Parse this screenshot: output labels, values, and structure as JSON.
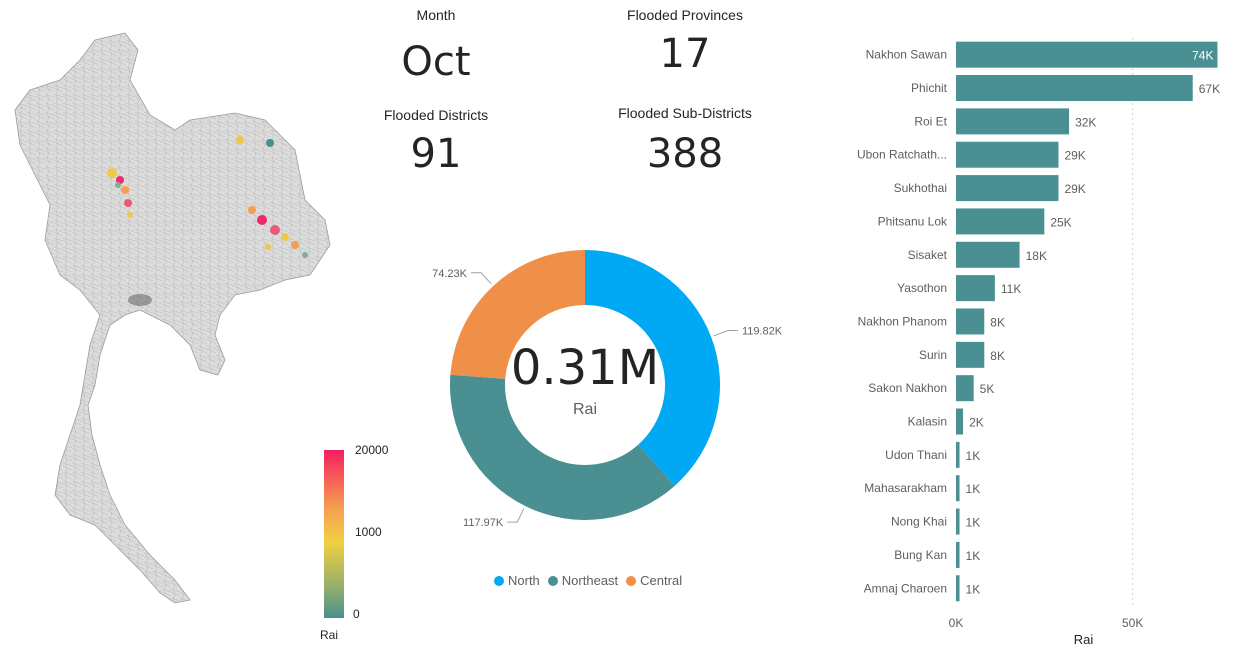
{
  "kpis": {
    "month": {
      "label": "Month",
      "value": "Oct"
    },
    "flooded_provinces": {
      "label": "Flooded Provinces",
      "value": "17"
    },
    "flooded_districts": {
      "label": "Flooded Districts",
      "value": "91"
    },
    "flooded_subdistricts": {
      "label": "Flooded Sub-Districts",
      "value": "388"
    }
  },
  "map": {
    "legend": {
      "max_label": "20000",
      "mid_label": "1000",
      "min_label": "0",
      "title": "Rai"
    },
    "colors": {
      "high": "#f0286e",
      "mid": "#f0c846",
      "low": "#4a8f8f",
      "base": "#d8d8d8"
    }
  },
  "chart_data": [
    {
      "type": "pie",
      "donut": true,
      "center_value": "0.31M",
      "center_label": "Rai",
      "slices": [
        {
          "name": "North",
          "value": 119.82,
          "label": "119.82K",
          "color": "#01a8f4"
        },
        {
          "name": "Northeast",
          "value": 117.97,
          "label": "117.97K",
          "color": "#4a9092"
        },
        {
          "name": "Central",
          "value": 74.23,
          "label": "74.23K",
          "color": "#f09048"
        }
      ],
      "legend": [
        "North",
        "Northeast",
        "Central"
      ],
      "legend_position": "bottom"
    },
    {
      "type": "bar",
      "orientation": "horizontal",
      "categories": [
        "Nakhon Sawan",
        "Phichit",
        "Roi Et",
        "Ubon Ratchath...",
        "Sukhothai",
        "Phitsanu Lok",
        "Sisaket",
        "Yasothon",
        "Nakhon Phanom",
        "Surin",
        "Sakon Nakhon",
        "Kalasin",
        "Udon Thani",
        "Mahasarakham",
        "Nong Khai",
        "Bung Kan",
        "Amnaj Charoen"
      ],
      "values": [
        74,
        67,
        32,
        29,
        29,
        25,
        18,
        11,
        8,
        8,
        5,
        2,
        1,
        1,
        1,
        1,
        1
      ],
      "value_labels": [
        "74K",
        "67K",
        "32K",
        "29K",
        "29K",
        "25K",
        "18K",
        "11K",
        "8K",
        "8K",
        "5K",
        "2K",
        "1K",
        "1K",
        "1K",
        "1K",
        "1K"
      ],
      "xticks": [
        "0K",
        "50K"
      ],
      "xlabel": "Rai",
      "xlim": [
        0,
        75
      ],
      "color": "#4a9092"
    }
  ]
}
